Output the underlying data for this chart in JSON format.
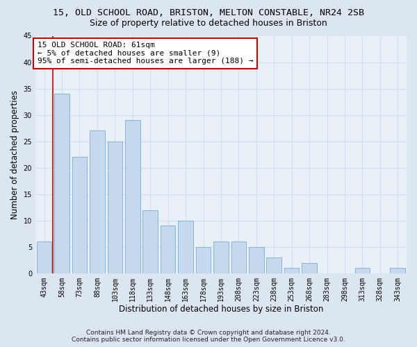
{
  "title": "15, OLD SCHOOL ROAD, BRISTON, MELTON CONSTABLE, NR24 2SB",
  "subtitle": "Size of property relative to detached houses in Briston",
  "xlabel": "Distribution of detached houses by size in Briston",
  "ylabel": "Number of detached properties",
  "categories": [
    "43sqm",
    "58sqm",
    "73sqm",
    "88sqm",
    "103sqm",
    "118sqm",
    "133sqm",
    "148sqm",
    "163sqm",
    "178sqm",
    "193sqm",
    "208sqm",
    "223sqm",
    "238sqm",
    "253sqm",
    "268sqm",
    "283sqm",
    "298sqm",
    "313sqm",
    "328sqm",
    "343sqm"
  ],
  "values": [
    6,
    34,
    22,
    27,
    25,
    29,
    12,
    9,
    10,
    5,
    6,
    6,
    5,
    3,
    1,
    2,
    0,
    0,
    1,
    0,
    1
  ],
  "bar_color": "#c5d8ee",
  "bar_edgecolor": "#7badd4",
  "grid_color": "#d0dff0",
  "background_color": "#dce6f1",
  "plot_bg_color": "#e8f0f8",
  "vline_color": "#cc0000",
  "annotation_text": "15 OLD SCHOOL ROAD: 61sqm\n← 5% of detached houses are smaller (9)\n95% of semi-detached houses are larger (188) →",
  "annotation_box_color": "#ffffff",
  "annotation_box_edgecolor": "#cc0000",
  "footnote1": "Contains HM Land Registry data © Crown copyright and database right 2024.",
  "footnote2": "Contains public sector information licensed under the Open Government Licence v3.0.",
  "ylim": [
    0,
    45
  ],
  "yticks": [
    0,
    5,
    10,
    15,
    20,
    25,
    30,
    35,
    40,
    45
  ],
  "title_fontsize": 9.5,
  "subtitle_fontsize": 9,
  "label_fontsize": 8.5,
  "tick_fontsize": 7,
  "annotation_fontsize": 8,
  "footnote_fontsize": 6.5
}
